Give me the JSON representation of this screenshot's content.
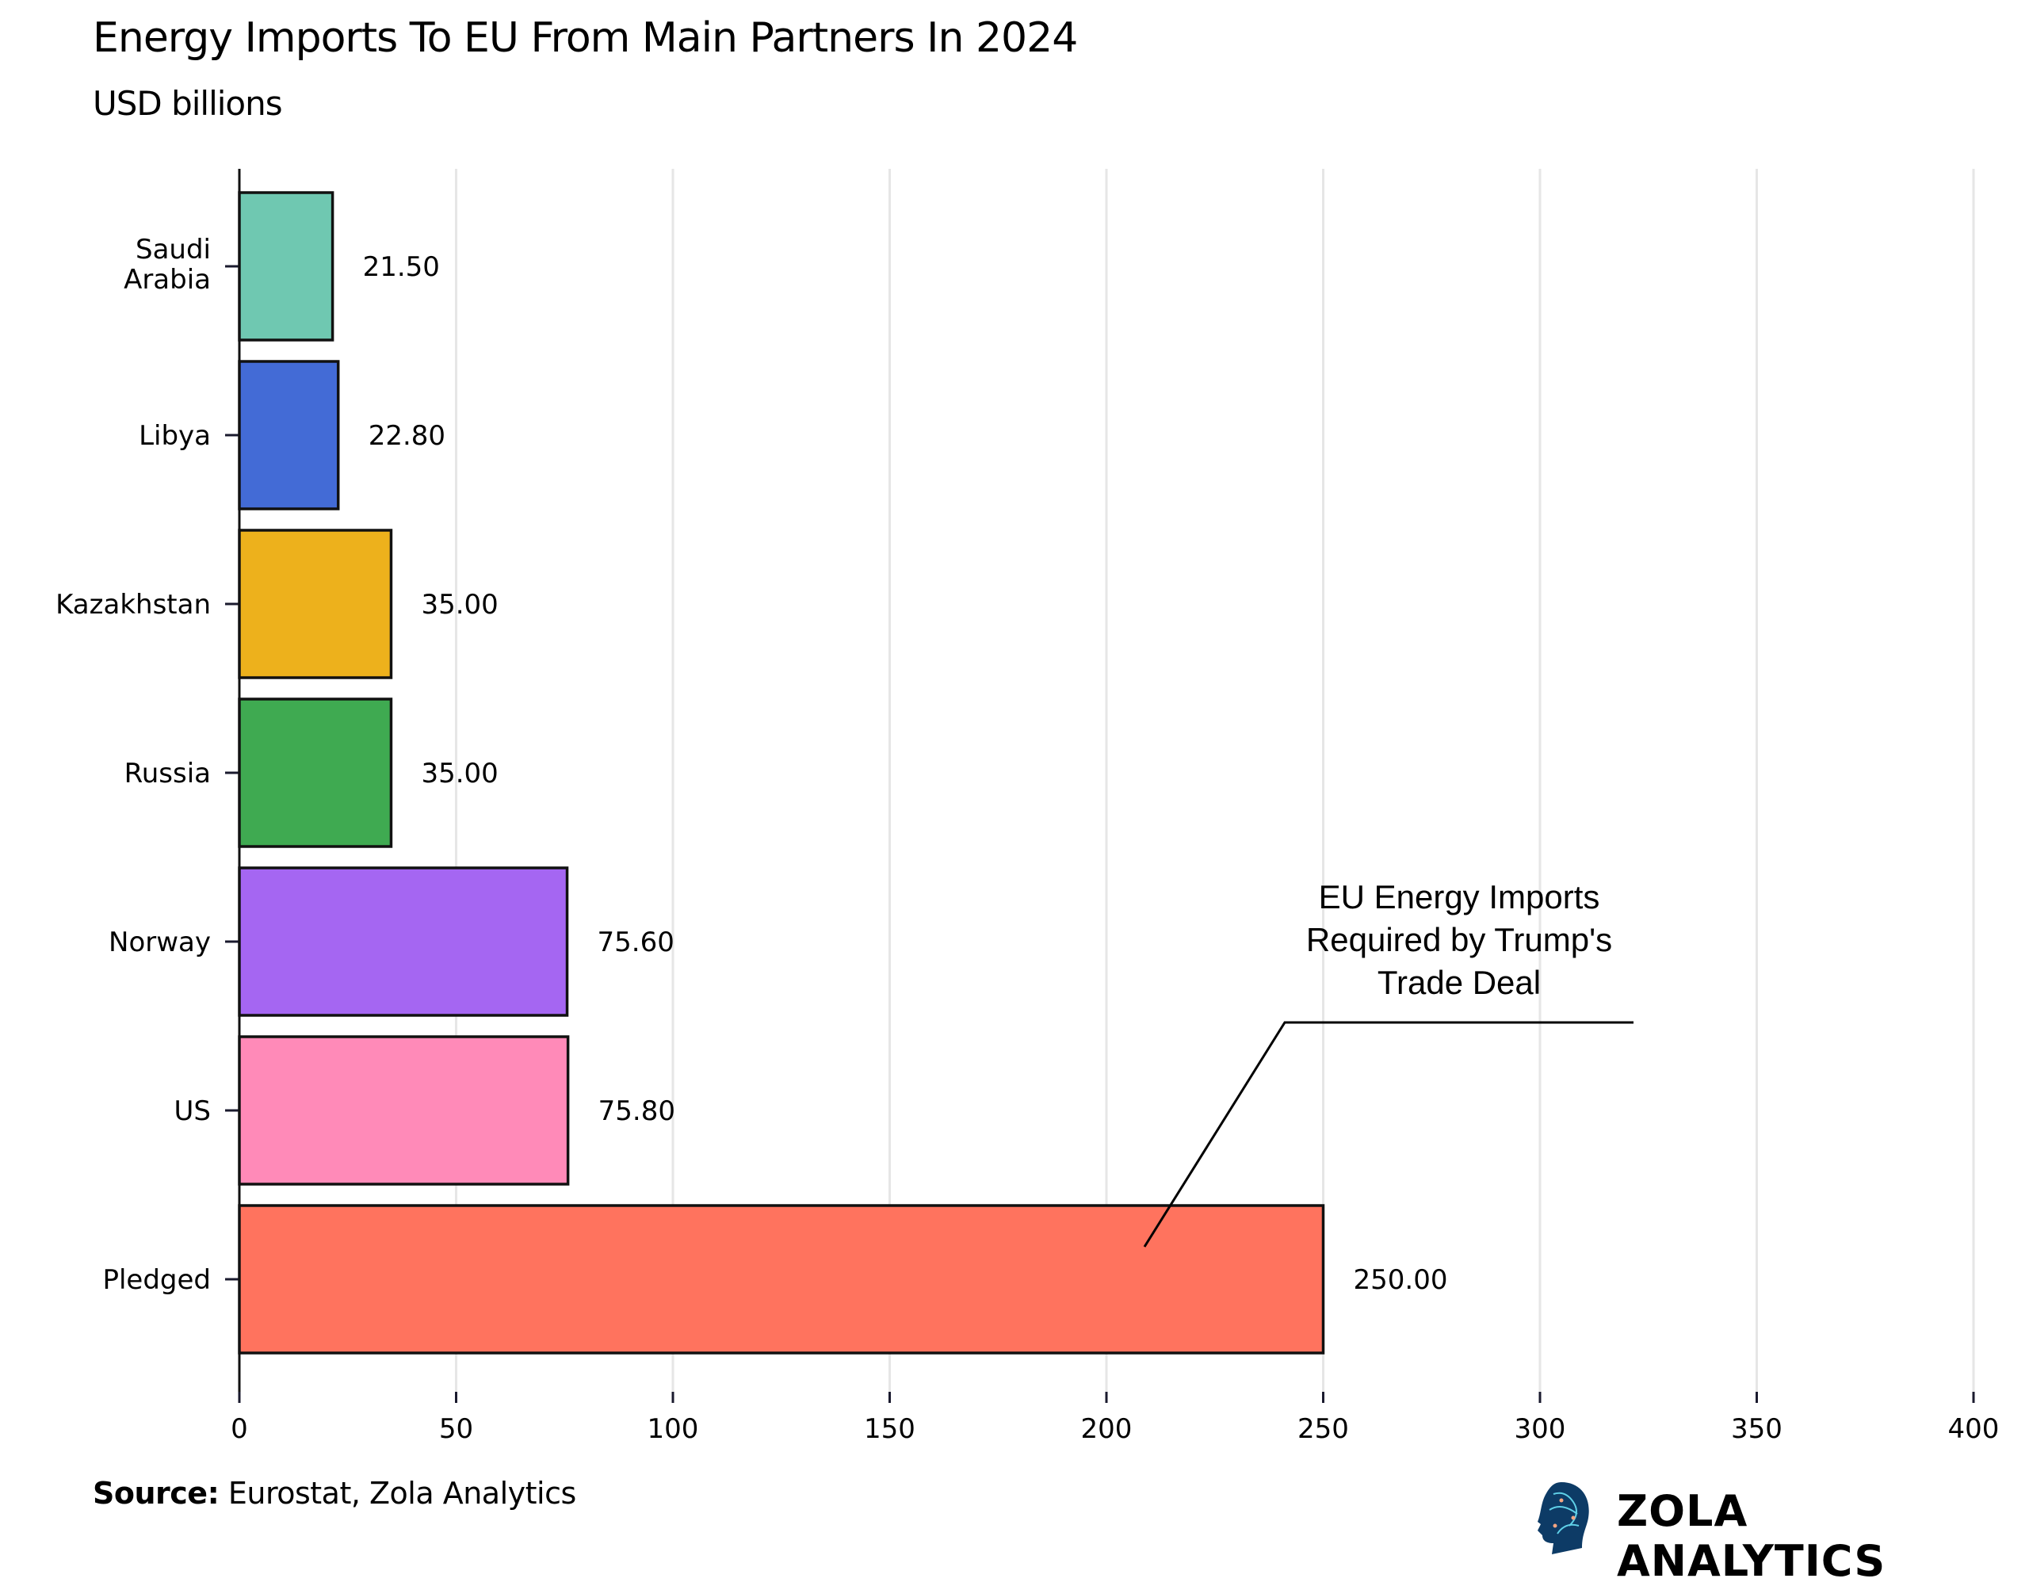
{
  "chart_data": {
    "type": "bar",
    "orientation": "horizontal",
    "title": "Energy Imports To EU From Main Partners In 2024",
    "subtitle": "USD billions",
    "categories": [
      "Saudi Arabia",
      "Libya",
      "Kazakhstan",
      "Russia",
      "Norway",
      "US",
      "Pledged"
    ],
    "values": [
      21.5,
      22.8,
      35.0,
      35.0,
      75.6,
      75.8,
      250.0
    ],
    "data_labels": [
      "21.50",
      "22.80",
      "35.00",
      "35.00",
      "75.60",
      "75.80",
      "250.00"
    ],
    "colors": [
      "#6fc8b1",
      "#436bd6",
      "#edb11c",
      "#3faa51",
      "#a566f2",
      "#ff8ab8",
      "#ff735e"
    ],
    "xlim": [
      0,
      400
    ],
    "xticks": [
      "0",
      "50",
      "100",
      "150",
      "200",
      "250",
      "300",
      "350",
      "400"
    ],
    "grid": "vertical",
    "annotation": {
      "lines": [
        "EU Energy Imports",
        "Required by Trump's",
        "Trade Deal"
      ],
      "target": "Pledged"
    }
  },
  "footer": {
    "source_label": "Source:",
    "source_text": " Eurostat, Zola Analytics",
    "brand": "ZOLA ANALYTICS"
  }
}
